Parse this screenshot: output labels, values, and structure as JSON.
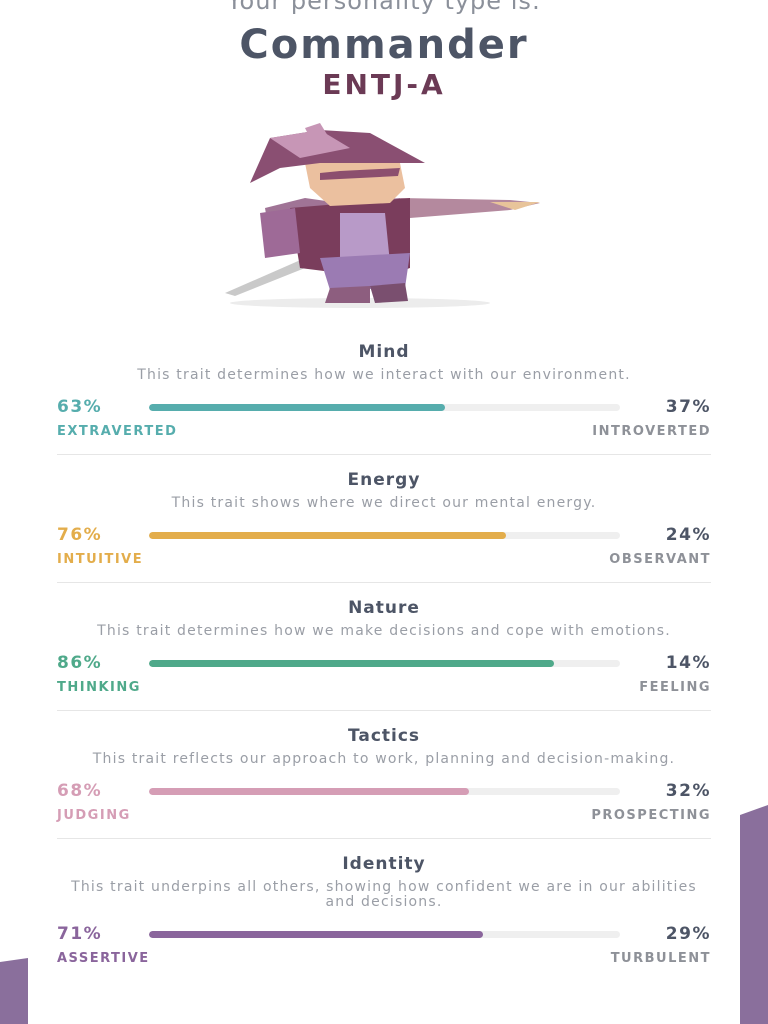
{
  "header": {
    "intro": "Your personality type is:",
    "type_name": "Commander",
    "type_code": "ENTJ-A"
  },
  "traits": [
    {
      "name": "Mind",
      "description": "This trait determines how we interact with our environment.",
      "color": "#56adad",
      "left": {
        "value": 63,
        "label": "63%"
      },
      "right": {
        "value": 37,
        "label": "37%"
      },
      "left_label": "EXTRAVERTED",
      "right_label": "INTROVERTED"
    },
    {
      "name": "Energy",
      "description": "This trait shows where we direct our mental energy.",
      "color": "#e3ad4b",
      "left": {
        "value": 76,
        "label": "76%"
      },
      "right": {
        "value": 24,
        "label": "24%"
      },
      "left_label": "INTUITIVE",
      "right_label": "OBSERVANT"
    },
    {
      "name": "Nature",
      "description": "This trait determines how we make decisions and cope with emotions.",
      "color": "#4fa98a",
      "left": {
        "value": 86,
        "label": "86%"
      },
      "right": {
        "value": 14,
        "label": "14%"
      },
      "left_label": "THINKING",
      "right_label": "FEELING"
    },
    {
      "name": "Tactics",
      "description": "This trait reflects our approach to work, planning and decision-making.",
      "color": "#d59db5",
      "left": {
        "value": 68,
        "label": "68%"
      },
      "right": {
        "value": 32,
        "label": "32%"
      },
      "left_label": "JUDGING",
      "right_label": "PROSPECTING"
    },
    {
      "name": "Identity",
      "description": "This trait underpins all others, showing how confident we are in our abilities and decisions.",
      "color": "#8a659c",
      "left": {
        "value": 71,
        "label": "71%"
      },
      "right": {
        "value": 29,
        "label": "29%"
      },
      "left_label": "ASSERTIVE",
      "right_label": "TURBULENT"
    }
  ]
}
